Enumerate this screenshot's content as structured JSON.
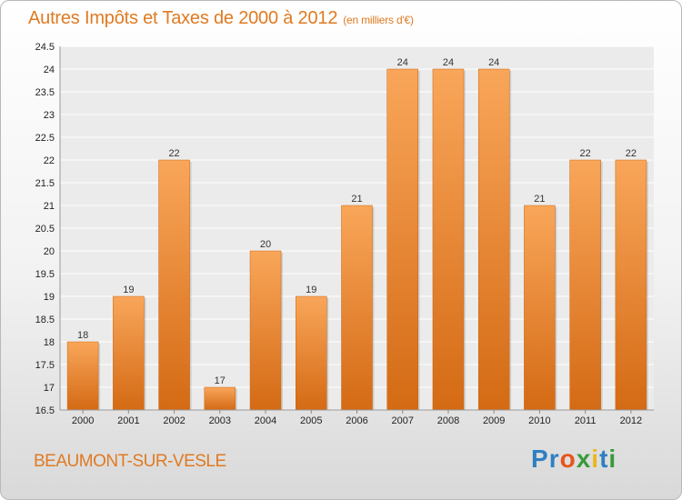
{
  "chart_data": {
    "type": "bar",
    "title": "Autres Impôts et Taxes de 2000 à 2012",
    "subtitle": "(en milliers d'€)",
    "xlabel": "",
    "ylabel": "",
    "categories": [
      "2000",
      "2001",
      "2002",
      "2003",
      "2004",
      "2005",
      "2006",
      "2007",
      "2008",
      "2009",
      "2010",
      "2011",
      "2012"
    ],
    "values": [
      18,
      19,
      22,
      17,
      20,
      19,
      21,
      24,
      24,
      24,
      21,
      22,
      22
    ],
    "ylim": [
      16.5,
      24.5
    ],
    "yticks": [
      16.5,
      17,
      17.5,
      18,
      18.5,
      19,
      19.5,
      20,
      20.5,
      21,
      21.5,
      22,
      22.5,
      23,
      23.5,
      24,
      24.5
    ],
    "grid": true,
    "bar_color": "#f08a2c"
  },
  "footer": {
    "commune": "BEAUMONT-SUR-VESLE",
    "logo_letters": [
      {
        "ch": "P",
        "color": "#2f7fc1"
      },
      {
        "ch": "r",
        "color": "#2f7fc1"
      },
      {
        "ch": "o",
        "color": "#e8541b"
      },
      {
        "ch": "x",
        "color": "#3a9a3a"
      },
      {
        "ch": "i",
        "color": "#e8b91a"
      },
      {
        "ch": "t",
        "color": "#2f7fc1"
      },
      {
        "ch": "i",
        "color": "#3a9a3a"
      }
    ]
  }
}
